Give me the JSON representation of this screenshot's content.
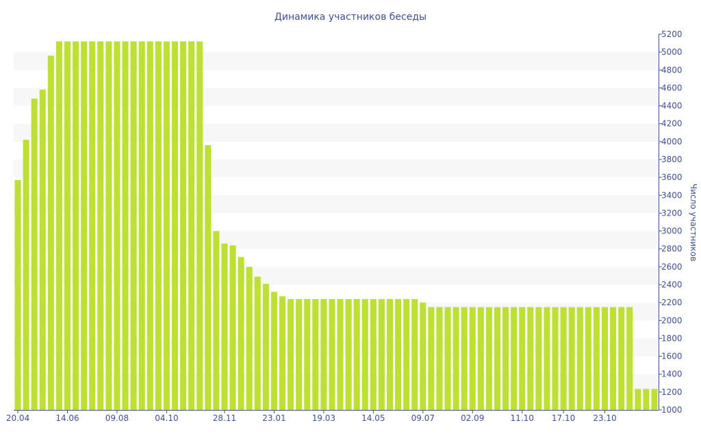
{
  "chart_data": {
    "type": "bar",
    "title": "Динамика участников беседы",
    "ylabel": "Число участников",
    "xlabel": "",
    "ylim": [
      1000,
      5200
    ],
    "y_ticks": [
      1000,
      1200,
      1400,
      1600,
      1800,
      2000,
      2200,
      2400,
      2600,
      2800,
      3000,
      3200,
      3400,
      3600,
      3800,
      4000,
      4200,
      4400,
      4600,
      4800,
      5000,
      5200
    ],
    "x_tick_labels": [
      {
        "index": 0,
        "label": "20.04"
      },
      {
        "index": 6,
        "label": "14.06"
      },
      {
        "index": 12,
        "label": "09.08"
      },
      {
        "index": 18,
        "label": "04.10"
      },
      {
        "index": 25,
        "label": "28.11"
      },
      {
        "index": 31,
        "label": "23.01"
      },
      {
        "index": 37,
        "label": "19.03"
      },
      {
        "index": 43,
        "label": "14.05"
      },
      {
        "index": 49,
        "label": "09.07"
      },
      {
        "index": 55,
        "label": "02.09"
      },
      {
        "index": 61,
        "label": "11.10"
      },
      {
        "index": 66,
        "label": "17.10"
      },
      {
        "index": 71,
        "label": "23.10"
      }
    ],
    "values": [
      3570,
      4020,
      4480,
      4580,
      4960,
      5120,
      5120,
      5120,
      5120,
      5120,
      5120,
      5120,
      5120,
      5120,
      5120,
      5120,
      5120,
      5120,
      5120,
      5120,
      5120,
      5120,
      5120,
      3960,
      3000,
      2860,
      2840,
      2710,
      2600,
      2490,
      2410,
      2320,
      2270,
      2240,
      2240,
      2240,
      2240,
      2240,
      2240,
      2240,
      2240,
      2240,
      2240,
      2240,
      2240,
      2240,
      2240,
      2240,
      2240,
      2200,
      2150,
      2150,
      2150,
      2150,
      2150,
      2150,
      2150,
      2150,
      2150,
      2150,
      2150,
      2150,
      2150,
      2150,
      2150,
      2150,
      2150,
      2150,
      2150,
      2150,
      2150,
      2150,
      2150,
      2150,
      2150,
      1235,
      1235,
      1235
    ],
    "bar_color": "#bde033",
    "band_color": "#f7f7f7",
    "axis_color": "#3d4f8e",
    "y_axis_side": "right",
    "grid": "alternating horizontal bands"
  }
}
